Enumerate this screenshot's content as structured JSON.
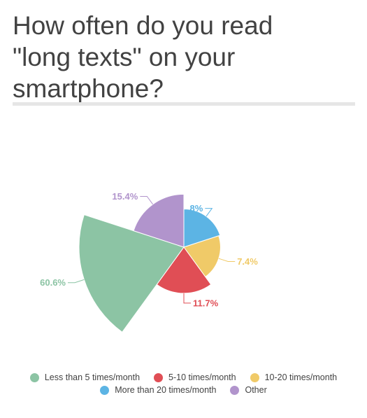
{
  "title": "How often do you read\n\"long texts\" on your\nsmartphone?",
  "chart_data": {
    "type": "pie",
    "variant": "rose",
    "title": "How often do you read \"long texts\" on your smartphone?",
    "categories": [
      "Less than 5 times/month",
      "5-10 times/month",
      "10-20 times/month",
      "More than 20 times/month",
      "Other"
    ],
    "values": [
      60.6,
      11.7,
      7.4,
      8,
      15.4
    ],
    "data_labels": [
      "60.6%",
      "11.7%",
      "7.4%",
      "8%",
      "15.4%"
    ],
    "colors": [
      "#8cc4a4",
      "#e04e55",
      "#f0ca68",
      "#5cb4e4",
      "#b194cc"
    ],
    "legend_position": "bottom"
  }
}
